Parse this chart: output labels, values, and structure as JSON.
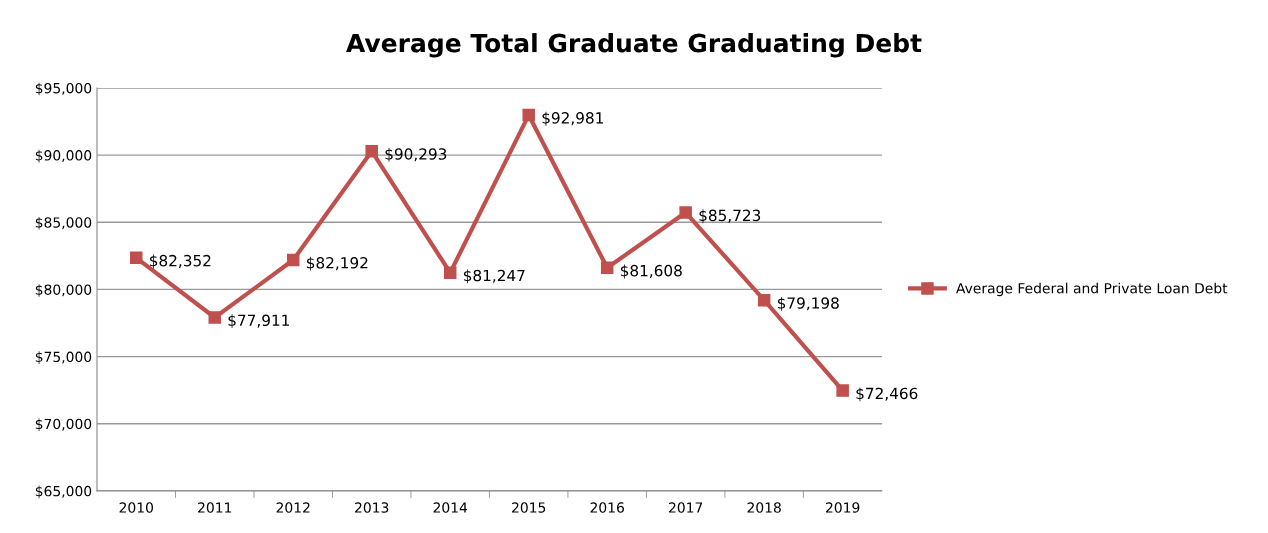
{
  "chart_data": {
    "type": "line",
    "title": "Average Total Graduate Graduating Debt",
    "categories": [
      "2010",
      "2011",
      "2012",
      "2013",
      "2014",
      "2015",
      "2016",
      "2017",
      "2018",
      "2019"
    ],
    "series": [
      {
        "name": "Average Federal and Private Loan Debt",
        "color": "#c0504d",
        "values": [
          82352,
          77911,
          82192,
          90293,
          81247,
          92981,
          81608,
          85723,
          79198,
          72466
        ],
        "value_labels": [
          "$82,352",
          "$77,911",
          "$82,192",
          "$90,293",
          "$81,247",
          "$92,981",
          "$81,608",
          "$85,723",
          "$79,198",
          "$72,466"
        ]
      }
    ],
    "ylim": [
      65000,
      95000
    ],
    "yticks": [
      {
        "value": 65000,
        "label": "$65,000"
      },
      {
        "value": 70000,
        "label": "$70,000"
      },
      {
        "value": 75000,
        "label": "$75,000"
      },
      {
        "value": 80000,
        "label": "$80,000"
      },
      {
        "value": 85000,
        "label": "$85,000"
      },
      {
        "value": 90000,
        "label": "$90,000"
      },
      {
        "value": 95000,
        "label": "$95,000"
      }
    ],
    "grid": "y",
    "legend": "right",
    "marker": "square",
    "line_style": "solid"
  }
}
